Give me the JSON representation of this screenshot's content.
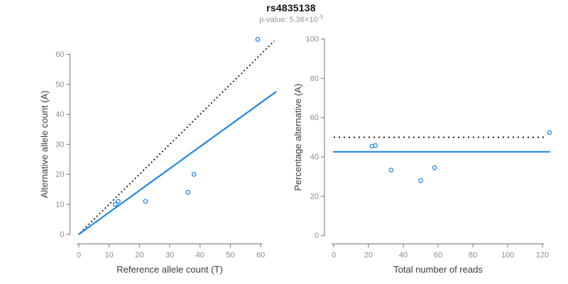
{
  "header": {
    "title": "rs4835138",
    "subtitle_main": "p-value: 5.36×10",
    "subtitle_exp": "-3"
  },
  "colors": {
    "accent_blue": "#1E87E5",
    "axis_gray": "#8a8a8a",
    "tick_label_gray": "#8c8c8c",
    "axis_title_gray": "#3c3c3c",
    "dotted_black": "#000000"
  },
  "chart_data": [
    {
      "type": "scatter",
      "name": "allele-count-scatter",
      "xlabel": "Reference allele count (T)",
      "ylabel": "Alternative allele count (A)",
      "xlim": [
        0,
        65
      ],
      "ylim": [
        0,
        66
      ],
      "xticks": [
        0,
        10,
        20,
        30,
        40,
        50,
        60
      ],
      "yticks": [
        0,
        10,
        20,
        30,
        40,
        50,
        60
      ],
      "grid": false,
      "legend": "none",
      "points": [
        [
          12,
          10
        ],
        [
          13,
          11
        ],
        [
          22,
          11
        ],
        [
          36,
          14
        ],
        [
          38,
          20
        ],
        [
          59,
          65
        ]
      ],
      "lines": [
        {
          "name": "identity-line",
          "style": "dotted",
          "color": "black",
          "from": [
            0.5,
            0.5
          ],
          "to": [
            64.5,
            64.5
          ]
        },
        {
          "name": "allelic-ratio-fit-line",
          "style": "solid",
          "color": "blue",
          "from": [
            0,
            0
          ],
          "to": [
            65,
            47.5
          ]
        }
      ]
    },
    {
      "type": "scatter",
      "name": "percentage-vs-reads-scatter",
      "xlabel": "Total number of reads",
      "ylabel": "Percentage alternative (A)",
      "xlim": [
        0,
        125
      ],
      "ylim": [
        0,
        100
      ],
      "xticks": [
        0,
        20,
        40,
        60,
        80,
        100,
        120
      ],
      "yticks": [
        0,
        20,
        40,
        60,
        80,
        100
      ],
      "grid": false,
      "legend": "none",
      "points": [
        [
          22,
          45.5
        ],
        [
          24,
          45.8
        ],
        [
          33,
          33.3
        ],
        [
          50,
          28
        ],
        [
          58,
          34.5
        ],
        [
          124,
          52.4
        ]
      ],
      "lines": [
        {
          "name": "expected-50-percent-line",
          "style": "dotted",
          "color": "black",
          "from": [
            0,
            50
          ],
          "to": [
            122.5,
            50
          ]
        },
        {
          "name": "mean-percentage-line",
          "style": "solid",
          "color": "blue",
          "from": [
            0,
            42.6
          ],
          "to": [
            124,
            42.6
          ]
        }
      ]
    }
  ]
}
